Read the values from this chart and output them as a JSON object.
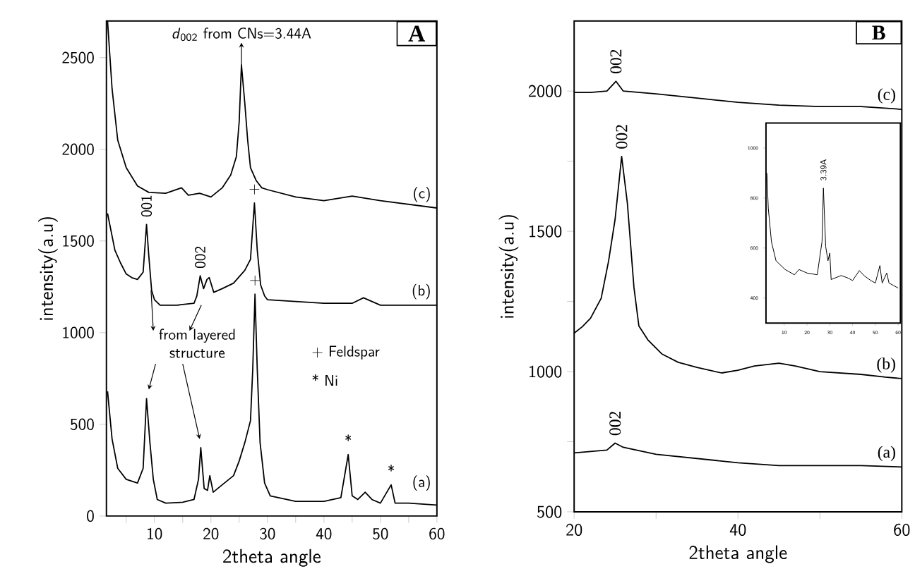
{
  "chart_data": [
    {
      "type": "line",
      "title": "A",
      "xlabel": "2theta angle",
      "ylabel": "intensity(a.u)",
      "xlim": [
        1.5,
        60
      ],
      "ylim": [
        0,
        2700
      ],
      "xticks": [
        {
          "value": 5,
          "label": null
        },
        10,
        {
          "value": 15,
          "label": null
        },
        20,
        {
          "value": 25,
          "label": null
        },
        30,
        {
          "value": 35,
          "label": null
        },
        40,
        {
          "value": 45,
          "label": null
        },
        50,
        {
          "value": 55,
          "label": null
        },
        60
      ],
      "yticks": [
        0,
        500,
        1000,
        1500,
        2000,
        2500
      ],
      "legend": false,
      "grid": false,
      "marker": "none",
      "line_style": "solid",
      "series": [
        {
          "name": "(a)",
          "color": "#000000",
          "x": [
            1.7,
            2.5,
            3.5,
            5,
            7,
            8,
            8.6,
            9.2,
            9.8,
            10.5,
            12,
            15,
            17,
            17.8,
            18.2,
            18.8,
            19.4,
            19.8,
            20.4,
            22,
            24,
            25,
            26,
            27,
            27.4,
            27.8,
            28.2,
            28.7,
            29.5,
            30.5,
            35,
            40,
            43,
            44.3,
            45,
            46,
            47.3,
            48.5,
            50,
            51.9,
            52.6,
            55,
            60
          ],
          "values": [
            680,
            420,
            260,
            200,
            180,
            260,
            640,
            400,
            200,
            90,
            70,
            75,
            90,
            200,
            373,
            150,
            140,
            220,
            130,
            170,
            220,
            300,
            400,
            520,
            800,
            1210,
            800,
            400,
            180,
            110,
            80,
            80,
            100,
            335,
            110,
            90,
            130,
            90,
            70,
            170,
            70,
            70,
            60
          ]
        },
        {
          "name": "(b)",
          "color": "#000000",
          "x": [
            1.7,
            3,
            4,
            5,
            6,
            7,
            8,
            8.6,
            9,
            9.5,
            10,
            11,
            14,
            17,
            17.5,
            18.1,
            18.7,
            19.3,
            19.7,
            20.5,
            22,
            24,
            26,
            27,
            27.7,
            28.2,
            28.8,
            29.5,
            30,
            35,
            40,
            45,
            47,
            50,
            55,
            60
          ],
          "values": [
            1650,
            1450,
            1380,
            1320,
            1300,
            1290,
            1330,
            1590,
            1420,
            1230,
            1180,
            1150,
            1150,
            1160,
            1200,
            1310,
            1240,
            1290,
            1300,
            1220,
            1240,
            1270,
            1340,
            1400,
            1707,
            1450,
            1260,
            1200,
            1180,
            1170,
            1160,
            1160,
            1190,
            1150,
            1150,
            1150
          ]
        },
        {
          "name": "(c)",
          "color": "#000000",
          "x": [
            1.7,
            2.5,
            3.5,
            5,
            7,
            9,
            12,
            14.8,
            16,
            18,
            20,
            22,
            23.5,
            24.5,
            25,
            25.4,
            26,
            26.5,
            27,
            28,
            29,
            30,
            35,
            40,
            45,
            50,
            55,
            60
          ],
          "values": [
            2700,
            2330,
            2050,
            1900,
            1800,
            1765,
            1760,
            1790,
            1750,
            1760,
            1740,
            1790,
            1860,
            1960,
            2150,
            2460,
            2250,
            2050,
            1900,
            1830,
            1790,
            1780,
            1740,
            1720,
            1745,
            1720,
            1700,
            1680
          ]
        }
      ],
      "annotations": [
        {
          "text": "001",
          "x": 8.6,
          "y": 1590
        },
        {
          "text": "002",
          "x": 18.1,
          "y": 1310
        },
        {
          "text": "+",
          "x": 27.7,
          "y": 1707
        },
        {
          "text": "+",
          "x": 27.8,
          "y": 1210
        },
        {
          "text": "*",
          "x": 44.3,
          "y": 335
        },
        {
          "text": "*",
          "x": 51.9,
          "y": 170
        },
        {
          "text": "*d*$_{002}$ from CNs=3.44A",
          "x": 25.4,
          "y": 2460
        },
        {
          "text": "from layered structure",
          "x": 8.6,
          "y": 640
        },
        "+ Feldspar",
        "* Ni"
      ]
    },
    {
      "type": "line",
      "title": "B",
      "xlabel": "2theta angle",
      "ylabel": "intensity(a.u)",
      "xlim": [
        20,
        60
      ],
      "ylim": [
        500,
        2250
      ],
      "xticks": [
        20,
        {
          "value": 30,
          "label": null
        },
        40,
        {
          "value": 50,
          "label": null
        },
        60
      ],
      "yticks": [
        500,
        {
          "value": 750,
          "label": null
        },
        1000,
        {
          "value": 1250,
          "label": null
        },
        1500,
        {
          "value": 1750,
          "label": null
        },
        2000
      ],
      "legend": false,
      "grid": false,
      "marker": "none",
      "line_style": "solid",
      "series": [
        {
          "name": "(a)",
          "color": "#000000",
          "x": [
            20,
            22,
            24,
            25,
            26,
            30,
            35,
            40,
            45,
            50,
            55,
            60
          ],
          "values": [
            710,
            715,
            720,
            745,
            730,
            705,
            690,
            675,
            665,
            665,
            665,
            660
          ]
        },
        {
          "name": "(b)",
          "color": "#000000",
          "x": [
            20,
            21,
            22,
            23.3,
            24.2,
            25,
            25.8,
            26.5,
            27.3,
            27.9,
            29,
            30.7,
            32.7,
            35,
            38,
            40,
            42,
            45,
            47,
            50,
            55,
            58,
            60
          ],
          "values": [
            1137,
            1160,
            1190,
            1261,
            1393,
            1543,
            1767,
            1600,
            1300,
            1163,
            1113,
            1063,
            1033,
            1015,
            995,
            1005,
            1020,
            1030,
            1020,
            1000,
            990,
            980,
            975
          ]
        },
        {
          "name": "(c)",
          "color": "#000000",
          "x": [
            20,
            22,
            24,
            25.1,
            26,
            28,
            30,
            35,
            40,
            45,
            50,
            55,
            60
          ],
          "values": [
            1995,
            1995,
            2000,
            2035,
            2000,
            1995,
            1990,
            1975,
            1960,
            1950,
            1945,
            1945,
            1935
          ]
        }
      ],
      "annotations": [
        {
          "text": "002",
          "x": 25.1,
          "y": 2035
        },
        {
          "text": "002",
          "x": 25.8,
          "y": 1767
        },
        {
          "text": "002",
          "x": 25,
          "y": 745
        }
      ]
    },
    {
      "type": "line",
      "xlim": [
        2,
        61
      ],
      "ylim": [
        300,
        1100
      ],
      "xticks": [
        10,
        20,
        30,
        40,
        50,
        60
      ],
      "yticks": [
        400,
        600,
        800,
        1000
      ],
      "legend": false,
      "grid": false,
      "marker": "none",
      "line_style": "solid",
      "series": [
        {
          "color": "#000000",
          "x": [
            2.4,
            3,
            4.4,
            6.4,
            10.4,
            14.5,
            16.5,
            20,
            24.5,
            26.6,
            27.2,
            28.2,
            29.2,
            30,
            30.6,
            35,
            38,
            40,
            43,
            45,
            48,
            50,
            52,
            53,
            55,
            56,
            58,
            60
          ],
          "values": [
            900,
            760,
            625,
            549,
            514,
            493,
            514,
            500,
            493,
            626,
            840,
            606,
            549,
            580,
            474,
            490,
            480,
            470,
            510,
            490,
            470,
            460,
            530,
            460,
            500,
            460,
            450,
            440
          ]
        }
      ],
      "annotations": [
        {
          "text": "3.39A",
          "x": 27.2,
          "y": 840
        }
      ]
    }
  ]
}
